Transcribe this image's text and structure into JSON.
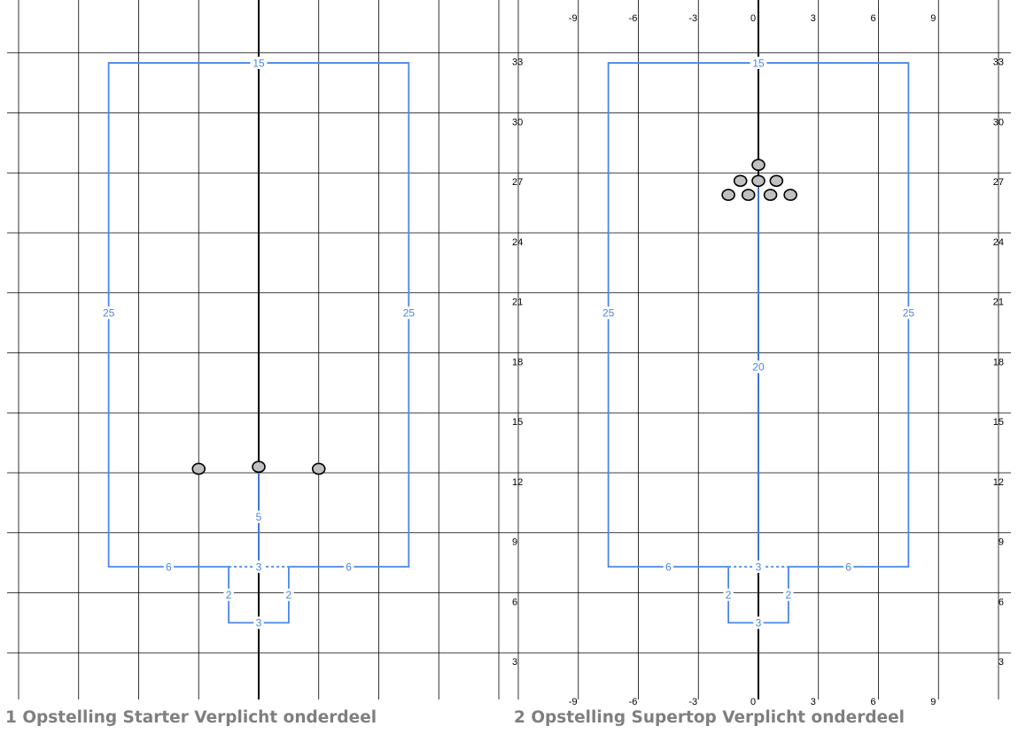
{
  "panels": [
    {
      "caption": "1 Opstelling Starter Verplicht onderdeel",
      "x_tick_labels": [],
      "y_tick_labels": [
        "33",
        "30",
        "27",
        "24",
        "21",
        "18",
        "15",
        "12",
        "9",
        "6",
        "3"
      ],
      "dimension_labels": {
        "top": "15",
        "left": "25",
        "right": "25",
        "center": "5",
        "bottom_left": "6",
        "bottom_right": "6",
        "bottom_mid": "3",
        "notch_left": "2",
        "notch_right": "2",
        "notch_bottom": "3"
      },
      "markers": [
        {
          "x": -3,
          "y": 12.2
        },
        {
          "x": 0,
          "y": 12.3
        },
        {
          "x": 3,
          "y": 12.2
        }
      ]
    },
    {
      "caption": "2 Opstelling Supertop Verplicht onderdeel",
      "x_tick_labels": [
        "-9",
        "-6",
        "-3",
        "0",
        "3",
        "6",
        "9"
      ],
      "y_tick_labels": [
        "33",
        "30",
        "27",
        "24",
        "21",
        "18",
        "15",
        "12",
        "9",
        "6",
        "3"
      ],
      "dimension_labels": {
        "top": "15",
        "left": "25",
        "right": "25",
        "center": "20",
        "bottom_left": "6",
        "bottom_right": "6",
        "bottom_mid": "3",
        "notch_left": "2",
        "notch_right": "2",
        "notch_bottom": "3"
      },
      "markers": [
        {
          "x": 0,
          "y": 27.4
        },
        {
          "x": -0.9,
          "y": 26.6
        },
        {
          "x": 0,
          "y": 26.6
        },
        {
          "x": 0.9,
          "y": 26.6
        },
        {
          "x": -1.5,
          "y": 25.9
        },
        {
          "x": -0.5,
          "y": 25.9
        },
        {
          "x": 0.6,
          "y": 25.9
        },
        {
          "x": 1.6,
          "y": 25.9
        }
      ]
    }
  ],
  "colors": {
    "grid": "#000000",
    "court": "#4a86e8",
    "court_label": "#4a86e8",
    "marker_fill": "#c0c0c0",
    "marker_stroke": "#000000",
    "caption": "#7f7f7f"
  }
}
